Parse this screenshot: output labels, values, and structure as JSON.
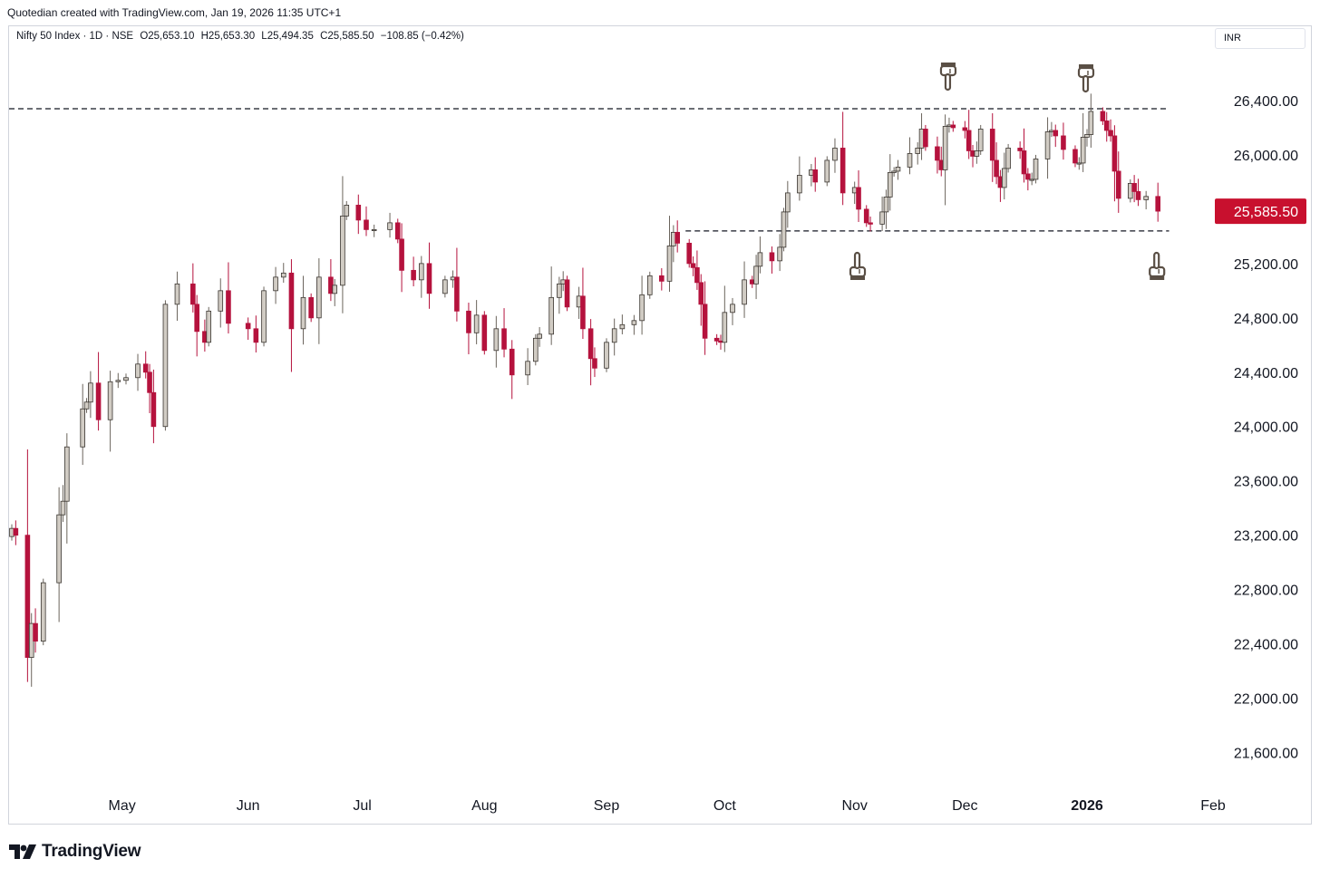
{
  "header": {
    "credit": "Quotedian created with TradingView.com, Jan 19, 2026 11:35 UTC+1",
    "symbol": "Nifty 50 Index · 1D · NSE",
    "open": "O25,653.10",
    "high": "H25,653.30",
    "low": "L25,494.35",
    "close": "C25,585.50",
    "change": "−108.85 (−0.42%)",
    "currency": "INR"
  },
  "footer": {
    "brand": "TradingView"
  },
  "colors": {
    "up": "#d1ccc4",
    "down": "#b5123d",
    "outline": "#3a3530",
    "price_tag": "#c8102e",
    "icon": "#5a4f45"
  },
  "chart_data": {
    "type": "candlestick",
    "title": "Nifty 50 Index · 1D · NSE",
    "ylim": [
      21350,
      26740
    ],
    "y_ticks": [
      {
        "value": 26400,
        "label": "26,400.00"
      },
      {
        "value": 26000,
        "label": "26,000.00"
      },
      {
        "value": 25200,
        "label": "25,200.00"
      },
      {
        "value": 24800,
        "label": "24,800.00"
      },
      {
        "value": 24400,
        "label": "24,400.00"
      },
      {
        "value": 24000,
        "label": "24,000.00"
      },
      {
        "value": 23600,
        "label": "23,600.00"
      },
      {
        "value": 23200,
        "label": "23,200.00"
      },
      {
        "value": 22800,
        "label": "22,800.00"
      },
      {
        "value": 22400,
        "label": "22,400.00"
      },
      {
        "value": 22000,
        "label": "22,000.00"
      },
      {
        "value": 21600,
        "label": "21,600.00"
      }
    ],
    "last_price": {
      "value": 25585.5,
      "label": "25,585.50"
    },
    "x_labels": [
      {
        "label": "May",
        "date": "2025-05-01",
        "bold": false
      },
      {
        "label": "Jun",
        "date": "2025-06-02",
        "bold": false
      },
      {
        "label": "Jul",
        "date": "2025-07-01",
        "bold": false
      },
      {
        "label": "Aug",
        "date": "2025-08-01",
        "bold": false
      },
      {
        "label": "Sep",
        "date": "2025-09-01",
        "bold": false
      },
      {
        "label": "Oct",
        "date": "2025-10-01",
        "bold": false
      },
      {
        "label": "Nov",
        "date": "2025-11-03",
        "bold": false
      },
      {
        "label": "Dec",
        "date": "2025-12-01",
        "bold": false
      },
      {
        "label": "2026",
        "date": "2026-01-01",
        "bold": true
      },
      {
        "label": "Feb",
        "date": "2026-02-02",
        "bold": false
      }
    ],
    "resistance": {
      "value": 26340,
      "from": "2025-04-03",
      "to": "2026-01-20",
      "style": "dashed"
    },
    "support": {
      "value": 25440,
      "from": "2025-09-22",
      "to": "2026-01-20",
      "style": "dashed"
    },
    "annotations": [
      {
        "type": "hand-pointing-down",
        "date": "2025-11-27"
      },
      {
        "type": "hand-pointing-down",
        "date": "2026-01-01"
      },
      {
        "type": "hand-pointing-up",
        "date": "2025-11-04"
      },
      {
        "type": "hand-pointing-up",
        "date": "2026-01-19"
      }
    ],
    "anchors": [
      {
        "date": "2025-04-03",
        "c": 23250
      },
      {
        "date": "2025-04-04",
        "c": 23200
      },
      {
        "date": "2025-04-07",
        "c": 22300
      },
      {
        "date": "2025-04-08",
        "c": 22550
      },
      {
        "date": "2025-04-09",
        "c": 22420
      },
      {
        "date": "2025-04-11",
        "c": 22850
      },
      {
        "date": "2025-04-15",
        "c": 23350
      },
      {
        "date": "2025-04-16",
        "c": 23450
      },
      {
        "date": "2025-04-17",
        "c": 23850
      },
      {
        "date": "2025-04-21",
        "c": 24130
      },
      {
        "date": "2025-04-22",
        "c": 24180
      },
      {
        "date": "2025-04-23",
        "c": 24320
      },
      {
        "date": "2025-04-25",
        "c": 24050
      },
      {
        "date": "2025-04-28",
        "c": 24330
      },
      {
        "date": "2025-04-30",
        "c": 24340
      },
      {
        "date": "2025-05-02",
        "c": 24360
      },
      {
        "date": "2025-05-05",
        "c": 24460
      },
      {
        "date": "2025-05-07",
        "c": 24400
      },
      {
        "date": "2025-05-08",
        "c": 24250
      },
      {
        "date": "2025-05-09",
        "c": 24000
      },
      {
        "date": "2025-05-12",
        "c": 24900
      },
      {
        "date": "2025-05-15",
        "c": 25050
      },
      {
        "date": "2025-05-19",
        "c": 24900
      },
      {
        "date": "2025-05-20",
        "c": 24700
      },
      {
        "date": "2025-05-22",
        "c": 24620
      },
      {
        "date": "2025-05-23",
        "c": 24850
      },
      {
        "date": "2025-05-26",
        "c": 25000
      },
      {
        "date": "2025-05-28",
        "c": 24760
      },
      {
        "date": "2025-06-02",
        "c": 24720
      },
      {
        "date": "2025-06-04",
        "c": 24620
      },
      {
        "date": "2025-06-06",
        "c": 25000
      },
      {
        "date": "2025-06-09",
        "c": 25100
      },
      {
        "date": "2025-06-11",
        "c": 25130
      },
      {
        "date": "2025-06-13",
        "c": 24720
      },
      {
        "date": "2025-06-16",
        "c": 24950
      },
      {
        "date": "2025-06-18",
        "c": 24800
      },
      {
        "date": "2025-06-20",
        "c": 25100
      },
      {
        "date": "2025-06-23",
        "c": 24980
      },
      {
        "date": "2025-06-24",
        "c": 25040
      },
      {
        "date": "2025-06-26",
        "c": 25550
      },
      {
        "date": "2025-06-27",
        "c": 25630
      },
      {
        "date": "2025-06-30",
        "c": 25520
      },
      {
        "date": "2025-07-02",
        "c": 25450
      },
      {
        "date": "2025-07-04",
        "c": 25450
      },
      {
        "date": "2025-07-08",
        "c": 25500
      },
      {
        "date": "2025-07-10",
        "c": 25380
      },
      {
        "date": "2025-07-11",
        "c": 25150
      },
      {
        "date": "2025-07-14",
        "c": 25080
      },
      {
        "date": "2025-07-16",
        "c": 25200
      },
      {
        "date": "2025-07-18",
        "c": 24980
      },
      {
        "date": "2025-07-22",
        "c": 25080
      },
      {
        "date": "2025-07-24",
        "c": 25100
      },
      {
        "date": "2025-07-25",
        "c": 24850
      },
      {
        "date": "2025-07-28",
        "c": 24690
      },
      {
        "date": "2025-07-30",
        "c": 24820
      },
      {
        "date": "2025-08-01",
        "c": 24560
      },
      {
        "date": "2025-08-04",
        "c": 24720
      },
      {
        "date": "2025-08-06",
        "c": 24570
      },
      {
        "date": "2025-08-08",
        "c": 24380
      },
      {
        "date": "2025-08-12",
        "c": 24480
      },
      {
        "date": "2025-08-14",
        "c": 24650
      },
      {
        "date": "2025-08-15",
        "c": 24680
      },
      {
        "date": "2025-08-18",
        "c": 24950
      },
      {
        "date": "2025-08-20",
        "c": 25050
      },
      {
        "date": "2025-08-21",
        "c": 25080
      },
      {
        "date": "2025-08-22",
        "c": 24880
      },
      {
        "date": "2025-08-25",
        "c": 24960
      },
      {
        "date": "2025-08-26",
        "c": 24720
      },
      {
        "date": "2025-08-28",
        "c": 24500
      },
      {
        "date": "2025-08-29",
        "c": 24430
      },
      {
        "date": "2025-09-01",
        "c": 24620
      },
      {
        "date": "2025-09-03",
        "c": 24720
      },
      {
        "date": "2025-09-05",
        "c": 24750
      },
      {
        "date": "2025-09-08",
        "c": 24780
      },
      {
        "date": "2025-09-10",
        "c": 24970
      },
      {
        "date": "2025-09-12",
        "c": 25110
      },
      {
        "date": "2025-09-15",
        "c": 25070
      },
      {
        "date": "2025-09-17",
        "c": 25330
      },
      {
        "date": "2025-09-18",
        "c": 25430
      },
      {
        "date": "2025-09-19",
        "c": 25350
      },
      {
        "date": "2025-09-22",
        "c": 25200
      },
      {
        "date": "2025-09-23",
        "c": 25170
      },
      {
        "date": "2025-09-24",
        "c": 25060
      },
      {
        "date": "2025-09-25",
        "c": 24900
      },
      {
        "date": "2025-09-26",
        "c": 24650
      },
      {
        "date": "2025-09-29",
        "c": 24630
      },
      {
        "date": "2025-09-30",
        "c": 24620
      },
      {
        "date": "2025-10-01",
        "c": 24840
      },
      {
        "date": "2025-10-03",
        "c": 24900
      },
      {
        "date": "2025-10-06",
        "c": 25080
      },
      {
        "date": "2025-10-08",
        "c": 25050
      },
      {
        "date": "2025-10-09",
        "c": 25180
      },
      {
        "date": "2025-10-10",
        "c": 25280
      },
      {
        "date": "2025-10-13",
        "c": 25220
      },
      {
        "date": "2025-10-15",
        "c": 25320
      },
      {
        "date": "2025-10-16",
        "c": 25580
      },
      {
        "date": "2025-10-17",
        "c": 25720
      },
      {
        "date": "2025-10-20",
        "c": 25850
      },
      {
        "date": "2025-10-23",
        "c": 25890
      },
      {
        "date": "2025-10-24",
        "c": 25800
      },
      {
        "date": "2025-10-27",
        "c": 25960
      },
      {
        "date": "2025-10-29",
        "c": 26050
      },
      {
        "date": "2025-10-31",
        "c": 25720
      },
      {
        "date": "2025-11-03",
        "c": 25760
      },
      {
        "date": "2025-11-04",
        "c": 25600
      },
      {
        "date": "2025-11-06",
        "c": 25500
      },
      {
        "date": "2025-11-07",
        "c": 25490
      },
      {
        "date": "2025-11-10",
        "c": 25580
      },
      {
        "date": "2025-11-11",
        "c": 25690
      },
      {
        "date": "2025-11-12",
        "c": 25870
      },
      {
        "date": "2025-11-13",
        "c": 25880
      },
      {
        "date": "2025-11-14",
        "c": 25910
      },
      {
        "date": "2025-11-17",
        "c": 26010
      },
      {
        "date": "2025-11-19",
        "c": 26050
      },
      {
        "date": "2025-11-20",
        "c": 26190
      },
      {
        "date": "2025-11-21",
        "c": 26060
      },
      {
        "date": "2025-11-24",
        "c": 25960
      },
      {
        "date": "2025-11-25",
        "c": 25890
      },
      {
        "date": "2025-11-26",
        "c": 26210
      },
      {
        "date": "2025-11-27",
        "c": 26220
      },
      {
        "date": "2025-11-28",
        "c": 26200
      },
      {
        "date": "2025-12-01",
        "c": 26180
      },
      {
        "date": "2025-12-02",
        "c": 26030
      },
      {
        "date": "2025-12-03",
        "c": 25990
      },
      {
        "date": "2025-12-04",
        "c": 26030
      },
      {
        "date": "2025-12-05",
        "c": 26190
      },
      {
        "date": "2025-12-08",
        "c": 25960
      },
      {
        "date": "2025-12-09",
        "c": 25840
      },
      {
        "date": "2025-12-10",
        "c": 25760
      },
      {
        "date": "2025-12-11",
        "c": 25900
      },
      {
        "date": "2025-12-12",
        "c": 26050
      },
      {
        "date": "2025-12-15",
        "c": 26030
      },
      {
        "date": "2025-12-16",
        "c": 25860
      },
      {
        "date": "2025-12-17",
        "c": 25820
      },
      {
        "date": "2025-12-18",
        "c": 25820
      },
      {
        "date": "2025-12-19",
        "c": 25970
      },
      {
        "date": "2025-12-22",
        "c": 26170
      },
      {
        "date": "2025-12-23",
        "c": 26180
      },
      {
        "date": "2025-12-24",
        "c": 26140
      },
      {
        "date": "2025-12-26",
        "c": 26040
      },
      {
        "date": "2025-12-29",
        "c": 25940
      },
      {
        "date": "2025-12-30",
        "c": 25940
      },
      {
        "date": "2025-12-31",
        "c": 26130
      },
      {
        "date": "2026-01-01",
        "c": 26150
      },
      {
        "date": "2026-01-02",
        "c": 26320
      },
      {
        "date": "2026-01-05",
        "c": 26250
      },
      {
        "date": "2026-01-06",
        "c": 26180
      },
      {
        "date": "2026-01-07",
        "c": 26140
      },
      {
        "date": "2026-01-08",
        "c": 25880
      },
      {
        "date": "2026-01-09",
        "c": 25680
      },
      {
        "date": "2026-01-12",
        "c": 25790
      },
      {
        "date": "2026-01-13",
        "c": 25730
      },
      {
        "date": "2026-01-14",
        "c": 25670
      },
      {
        "date": "2026-01-16",
        "c": 25694
      },
      {
        "date": "2026-01-19",
        "c": 25585.5
      }
    ]
  }
}
